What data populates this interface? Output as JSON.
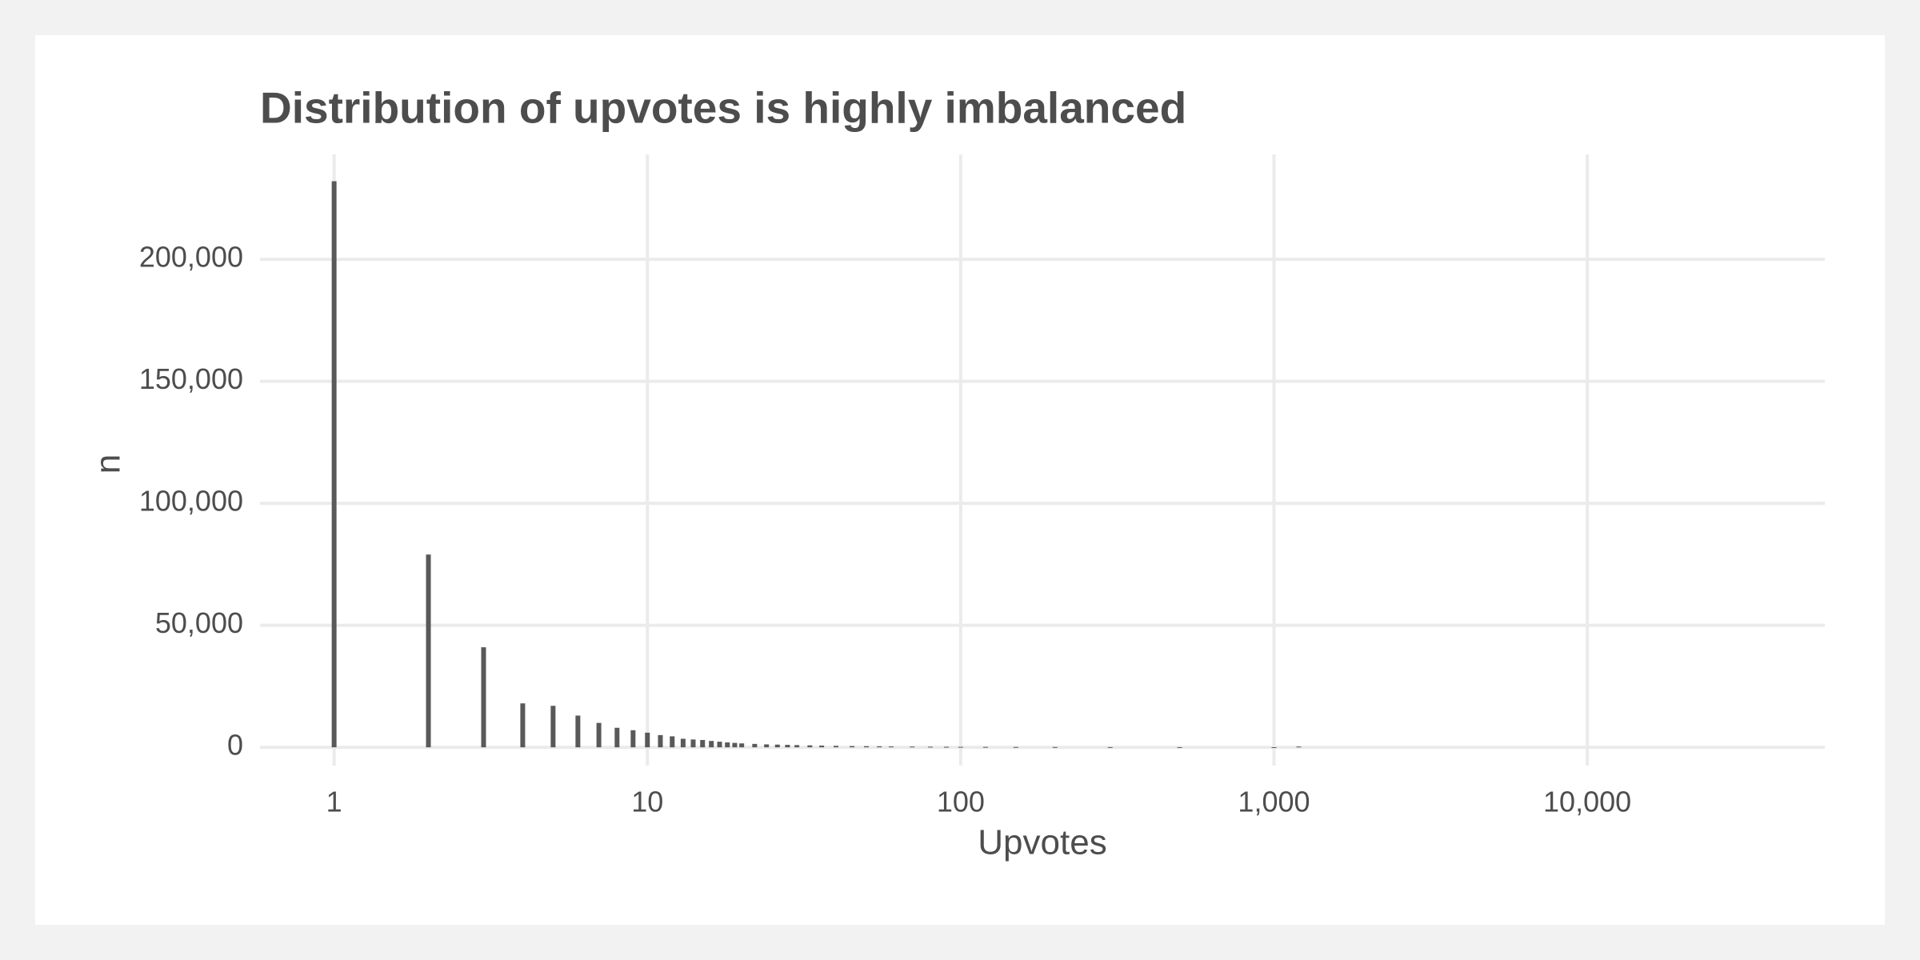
{
  "chart_data": {
    "type": "bar",
    "title": "Distribution of upvotes is highly imbalanced",
    "x_label": "Upvotes",
    "y_label": "n",
    "x": [
      1,
      2,
      3,
      4,
      5,
      6,
      7,
      8,
      9,
      10,
      11,
      12,
      13,
      14,
      15,
      16,
      17,
      18,
      19,
      20,
      22,
      24,
      26,
      28,
      30,
      33,
      36,
      40,
      45,
      50,
      55,
      60,
      70,
      80,
      90,
      100,
      120,
      150,
      200,
      300,
      500,
      1000,
      1200
    ],
    "values": [
      232000,
      79000,
      41000,
      18000,
      17000,
      13000,
      10000,
      8000,
      7000,
      6000,
      5000,
      4500,
      3500,
      3200,
      3000,
      2600,
      2300,
      2000,
      1800,
      1600,
      1400,
      1200,
      1100,
      1000,
      900,
      800,
      700,
      600,
      500,
      450,
      400,
      350,
      300,
      250,
      200,
      180,
      150,
      120,
      100,
      80,
      60,
      40,
      300
    ],
    "color": "#595959",
    "log_x": true,
    "xlim": [
      0.58,
      57300
    ],
    "ylim": [
      -7500,
      243000
    ],
    "xticks": [
      1,
      10,
      100,
      {
        "value": 1000,
        "label": "1,000"
      },
      {
        "value": 10000,
        "label": "10,000"
      }
    ],
    "yticks": [
      0,
      {
        "value": 50000,
        "label": "50,000"
      },
      {
        "value": 100000,
        "label": "100,000"
      },
      {
        "value": 150000,
        "label": "150,000"
      },
      {
        "value": 200000,
        "label": "200,000"
      }
    ],
    "grid": true
  }
}
